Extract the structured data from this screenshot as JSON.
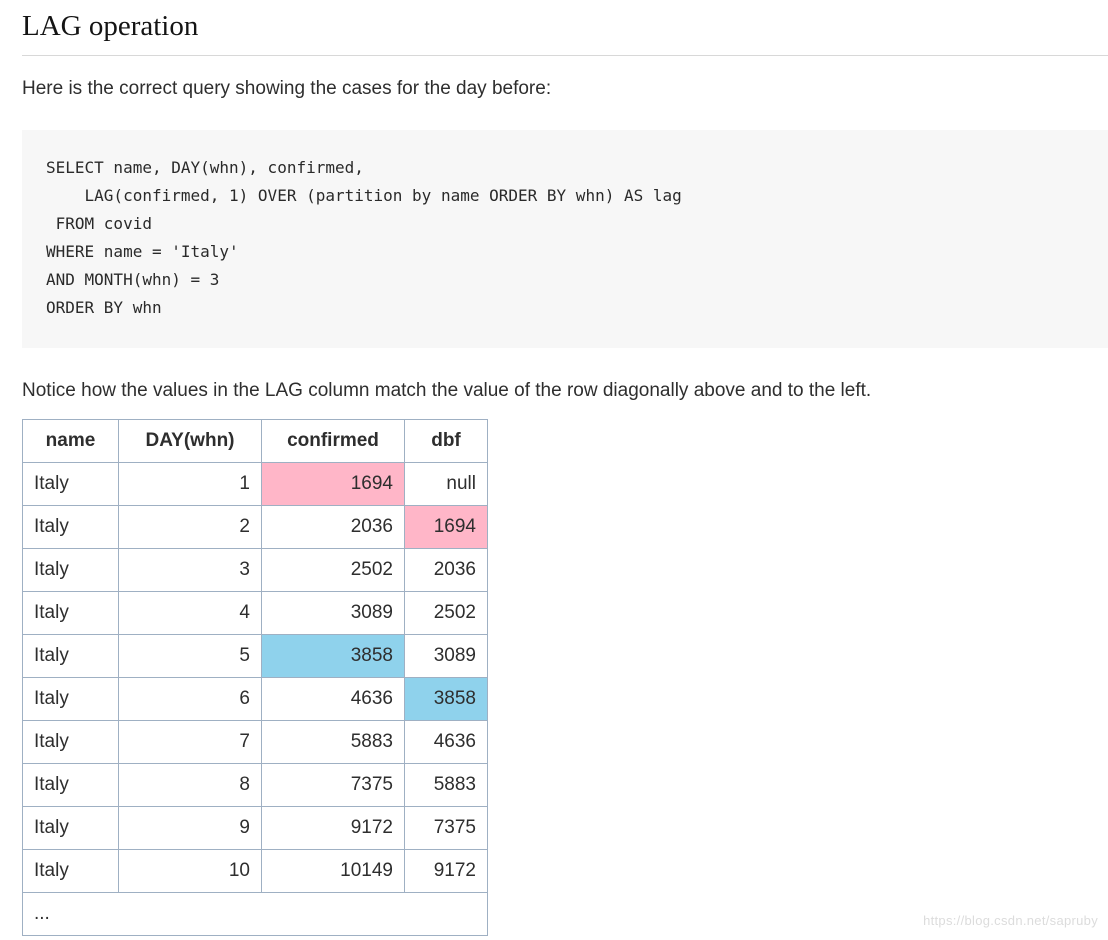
{
  "page": {
    "title": "LAG operation",
    "intro": "Here is the correct query showing the cases for the day before:",
    "notice": "Notice how the values in the LAG column match the value of the row diagonally above and to the left.",
    "watermark": "https://blog.csdn.net/sapruby"
  },
  "code": {
    "text": "SELECT name, DAY(whn), confirmed,\n    LAG(confirmed, 1) OVER (partition by name ORDER BY whn) AS lag\n FROM covid\nWHERE name = 'Italy'\nAND MONTH(whn) = 3\nORDER BY whn"
  },
  "table": {
    "headers": [
      "name",
      "DAY(whn)",
      "confirmed",
      "dbf"
    ],
    "rows": [
      {
        "name": "Italy",
        "day": "1",
        "confirmed": "1694",
        "dbf": "null",
        "confirmed_hl": "pink",
        "dbf_hl": null
      },
      {
        "name": "Italy",
        "day": "2",
        "confirmed": "2036",
        "dbf": "1694",
        "confirmed_hl": null,
        "dbf_hl": "pink"
      },
      {
        "name": "Italy",
        "day": "3",
        "confirmed": "2502",
        "dbf": "2036",
        "confirmed_hl": null,
        "dbf_hl": null
      },
      {
        "name": "Italy",
        "day": "4",
        "confirmed": "3089",
        "dbf": "2502",
        "confirmed_hl": null,
        "dbf_hl": null
      },
      {
        "name": "Italy",
        "day": "5",
        "confirmed": "3858",
        "dbf": "3089",
        "confirmed_hl": "blue",
        "dbf_hl": null
      },
      {
        "name": "Italy",
        "day": "6",
        "confirmed": "4636",
        "dbf": "3858",
        "confirmed_hl": null,
        "dbf_hl": "blue"
      },
      {
        "name": "Italy",
        "day": "7",
        "confirmed": "5883",
        "dbf": "4636",
        "confirmed_hl": null,
        "dbf_hl": null
      },
      {
        "name": "Italy",
        "day": "8",
        "confirmed": "7375",
        "dbf": "5883",
        "confirmed_hl": null,
        "dbf_hl": null
      },
      {
        "name": "Italy",
        "day": "9",
        "confirmed": "9172",
        "dbf": "7375",
        "confirmed_hl": null,
        "dbf_hl": null
      },
      {
        "name": "Italy",
        "day": "10",
        "confirmed": "10149",
        "dbf": "9172",
        "confirmed_hl": null,
        "dbf_hl": null
      }
    ],
    "ellipsis": "...",
    "colors": {
      "highlight_pink": "#ffb6c8",
      "highlight_blue": "#8fd2ec",
      "border": "#9fb0c3"
    }
  }
}
